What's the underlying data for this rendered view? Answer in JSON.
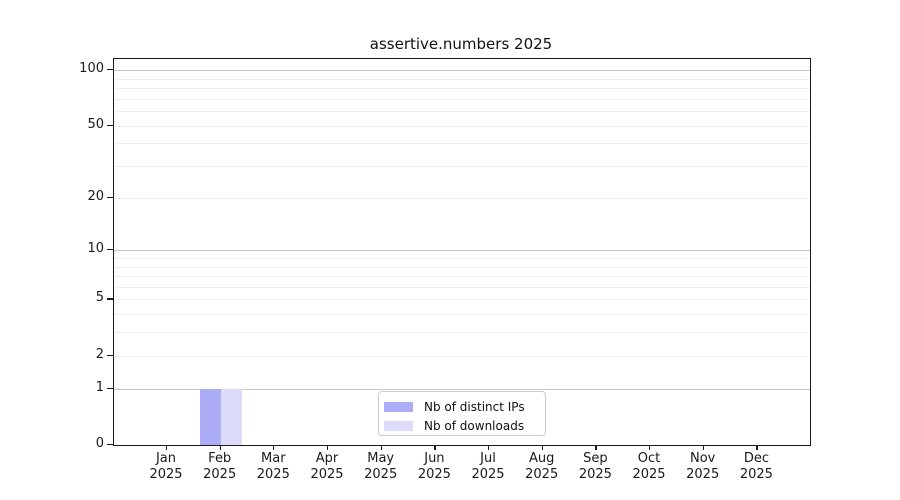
{
  "chart_data": {
    "type": "bar",
    "title": "assertive.numbers 2025",
    "categories": [
      "Jan 2025",
      "Feb 2025",
      "Mar 2025",
      "Apr 2025",
      "May 2025",
      "Jun 2025",
      "Jul 2025",
      "Aug 2025",
      "Sep 2025",
      "Oct 2025",
      "Nov 2025",
      "Dec 2025"
    ],
    "series": [
      {
        "name": "Nb of distinct IPs",
        "color": "#adadf7",
        "values": [
          0,
          1,
          0,
          0,
          0,
          0,
          0,
          0,
          0,
          0,
          0,
          0
        ]
      },
      {
        "name": "Nb of downloads",
        "color": "#dcdcfa",
        "values": [
          0,
          1,
          0,
          0,
          0,
          0,
          0,
          0,
          0,
          0,
          0,
          0
        ]
      }
    ],
    "xlabel": "",
    "ylabel": "",
    "y_scale": "log10(1+v)",
    "ylim": [
      0,
      115
    ],
    "y_tick_values": [
      0,
      1,
      2,
      5,
      10,
      20,
      50,
      100
    ],
    "y_tick_labels": [
      "0",
      "1",
      "2",
      "5",
      "10",
      "20",
      "50",
      "100"
    ],
    "major_gridlines": [
      1,
      10,
      100
    ],
    "minor_gridlines": [
      2,
      3,
      4,
      5,
      6,
      7,
      8,
      9,
      20,
      30,
      40,
      50,
      60,
      70,
      80,
      90
    ],
    "grid": true,
    "legend_position": "lower center",
    "colors": {
      "major_grid": "#c9c9c9",
      "minor_grid": "#eeeeee",
      "spine": "#1a1a1a"
    }
  }
}
